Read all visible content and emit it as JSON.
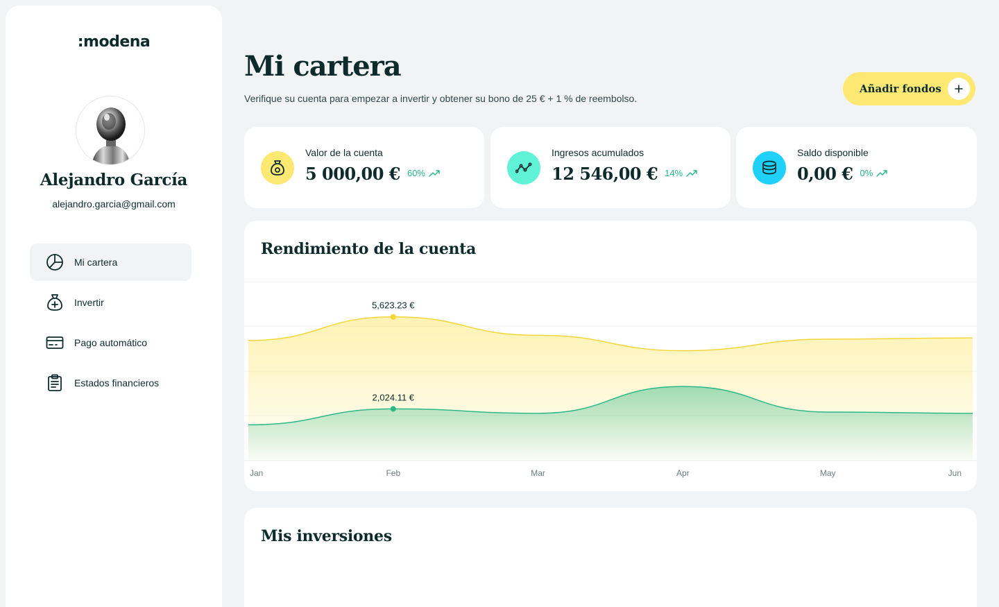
{
  "brand": {
    "logo_text": ":modena"
  },
  "user": {
    "name": "Alejandro García",
    "email": "alejandro.garcia@gmail.com"
  },
  "nav": {
    "items": [
      {
        "label": "Mi cartera",
        "icon": "pie-chart-icon",
        "active": true
      },
      {
        "label": "Invertir",
        "icon": "money-bag-plus-icon",
        "active": false
      },
      {
        "label": "Pago automático",
        "icon": "credit-card-icon",
        "active": false
      },
      {
        "label": "Estados financieros",
        "icon": "clipboard-icon",
        "active": false
      }
    ]
  },
  "header": {
    "title": "Mi cartera",
    "subtitle": "Verifique su cuenta para empezar a invertir y obtener su bono de 25 € + 1 % de reembolso.",
    "add_funds_label": "Añadir fondos"
  },
  "stats": [
    {
      "label": "Valor de la cuenta",
      "value": "5 000,00 €",
      "change": "60%",
      "icon": "money-bag-icon",
      "color": "#fde874"
    },
    {
      "label": "Ingresos acumulados",
      "value": "12 546,00 €",
      "change": "14%",
      "icon": "trend-line-icon",
      "color": "#5ff2d6"
    },
    {
      "label": "Saldo disponible",
      "value": "0,00 €",
      "change": "0%",
      "icon": "coins-stack-icon",
      "color": "#1fd1f9"
    }
  ],
  "performance": {
    "title": "Rendimiento de la cuenta"
  },
  "investments": {
    "title": "Mis inversiones"
  },
  "chart_data": {
    "type": "area",
    "x": [
      "Jan",
      "Feb",
      "Mar",
      "Apr",
      "May",
      "Jun"
    ],
    "series": [
      {
        "values": [
          4700,
          5623.23,
          4900,
          4300,
          4750,
          4800
        ],
        "color": "#f5d63a"
      },
      {
        "values": [
          1400,
          2024.11,
          1850,
          2900,
          1900,
          1850
        ],
        "color": "#2db888"
      }
    ],
    "annotations": [
      {
        "x": "Feb",
        "value": "5,623.23 €"
      },
      {
        "x": "Feb",
        "value": "2,024.11 €"
      }
    ],
    "grid": true
  },
  "colors": {
    "accent_yellow": "#fde874",
    "positive": "#22b884",
    "text": "#0d2b2b"
  }
}
